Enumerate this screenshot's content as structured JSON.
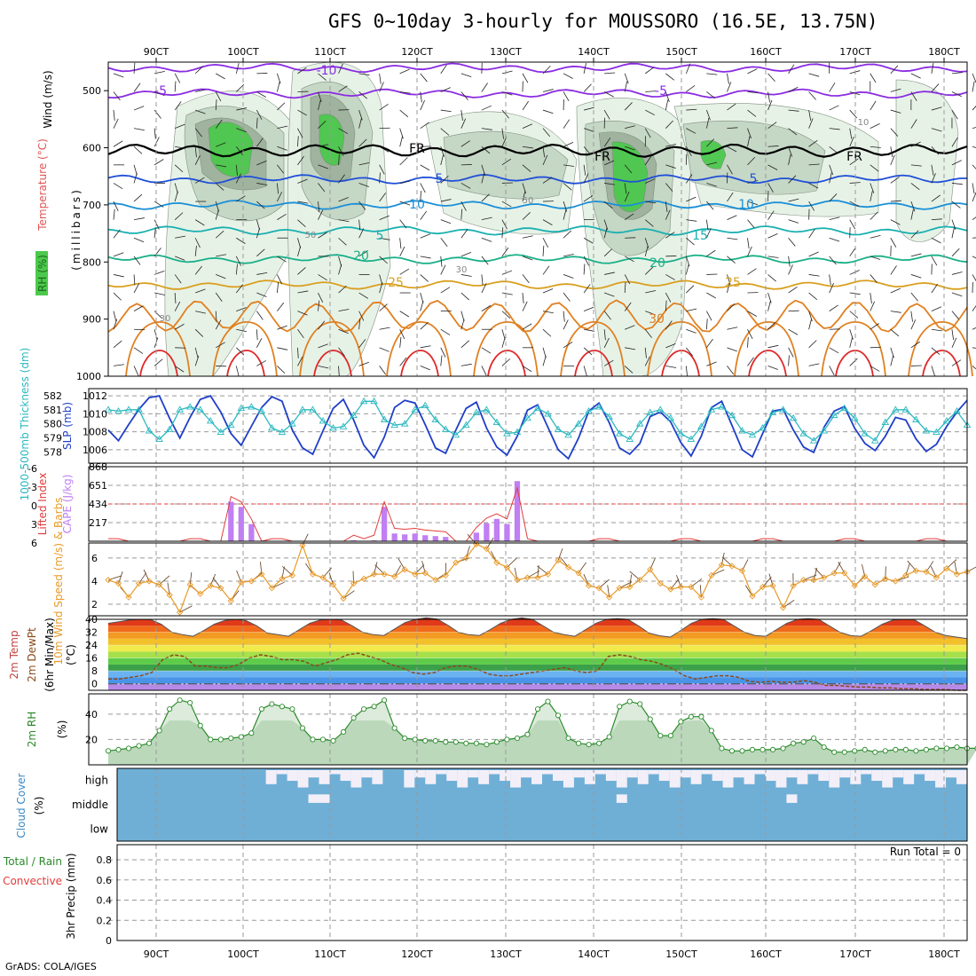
{
  "title": "GFS 0~10day 3-hourly for MOUSSORO (16.5E, 13.75N)",
  "footer": "GrADS: COLA/IGES",
  "run_total_label": "Run Total = 0",
  "colors": {
    "rh_light": "#e6f2e6",
    "rh_mid": "#c4d6c4",
    "rh_dark": "#9db29d",
    "rh_bright": "#4cc94c",
    "slp": "#1f3fc8",
    "thickness": "#2ab8c0",
    "lifted": "#e23c3c",
    "cape": "#c07ff2",
    "wind10": "#e89a2a",
    "barb": "#5c3b1e",
    "rh2m": "#2a8a2a",
    "cloud": "#6fafd6",
    "cloud_clear": "#f3eff8"
  },
  "chart_data": [
    {
      "panel": "upper-air",
      "type": "contour",
      "ylabel": [
        "Wind (m/s)",
        "Temperature (°C)",
        "RH (%)",
        "(millibars)"
      ],
      "x_ticks": [
        "90CT",
        "100CT",
        "110CT",
        "120CT",
        "130CT",
        "140CT",
        "150CT",
        "160CT",
        "170CT",
        "180CT"
      ],
      "y_ticks": [
        500,
        600,
        700,
        800,
        900,
        1000
      ],
      "ylim": [
        450,
        1000
      ],
      "isotherms": [
        {
          "label": "-10",
          "level": 460,
          "color": "#8a2be2"
        },
        {
          "label": "-5",
          "level": 505,
          "color": "#8a2be2"
        },
        {
          "label": "FR",
          "level": 605,
          "color": "#000000"
        },
        {
          "label": "5",
          "level": 655,
          "color": "#1f4fd8"
        },
        {
          "label": "10",
          "level": 700,
          "color": "#1a8fd8"
        },
        {
          "label": "15",
          "level": 745,
          "color": "#19b0b0"
        },
        {
          "label": "20",
          "level": 795,
          "color": "#19b088"
        },
        {
          "label": "25",
          "level": 840,
          "color": "#d9a020"
        },
        {
          "label": "30",
          "level": 895,
          "color": "#e08020"
        }
      ],
      "contour_labels": [
        "-10",
        "-5",
        "-5",
        "FR",
        "FR",
        "FR",
        "5",
        "5",
        "10",
        "10",
        "5",
        "15",
        "20",
        "20",
        "25",
        "25",
        "30",
        "50",
        "50",
        "30",
        "30",
        "10"
      ]
    },
    {
      "panel": "slp-thickness",
      "type": "line",
      "ylabel_left": "1000-500mb Thickness (dm)",
      "ylabel_right": "SLP (mb)",
      "left_ticks": [
        578,
        579,
        580,
        581,
        582
      ],
      "right_ticks": [
        1006,
        1008,
        1010,
        1012
      ],
      "series": [
        {
          "name": "SLP (mb)",
          "values": [
            1008.2,
            1007,
            1008.8,
            1010.5,
            1011.8,
            1012,
            1009.5,
            1007.3,
            1009.6,
            1011.6,
            1012,
            1010.2,
            1007.8,
            1006.5,
            1008.6,
            1010.7,
            1011.9,
            1011.4,
            1008.2,
            1006.2,
            1005.5,
            1008.1,
            1010.6,
            1011.6,
            1009.3,
            1006.5,
            1005.1,
            1007.4,
            1010.7,
            1011.5,
            1011.2,
            1008.8,
            1006.2,
            1005.6,
            1008.2,
            1010.6,
            1011.3,
            1008.4,
            1006.3,
            1005.4,
            1007.5,
            1010.4,
            1011,
            1008.5,
            1006,
            1005,
            1007.3,
            1010.3,
            1011.2,
            1009,
            1006.2,
            1005.5,
            1006.7,
            1009.7,
            1010.2,
            1009.1,
            1006.8,
            1005.3,
            1007.5,
            1010.7,
            1011.4,
            1008.7,
            1006,
            1005.2,
            1007.8,
            1010.3,
            1010.5,
            1008.2,
            1006.3,
            1005.7,
            1008.5,
            1010.3,
            1010.8,
            1008.4,
            1006.7,
            1005.9,
            1007.5,
            1009.6,
            1009.3,
            1007.2,
            1005.8,
            1006.6,
            1008.6,
            1010.2,
            1011.5
          ]
        },
        {
          "name": "1000-500mb Thickness (dm)",
          "values": [
            581,
            580.9,
            581,
            581,
            579.5,
            578.9,
            579.6,
            581,
            581.2,
            581,
            580.2,
            579.4,
            579.9,
            581.1,
            581.2,
            580.9,
            579.7,
            579.4,
            580,
            581,
            581,
            580.2,
            579.7,
            579.8,
            580.6,
            581.6,
            581.6,
            580.3,
            579.9,
            580,
            581,
            581.3,
            580.3,
            579.6,
            579.2,
            579.9,
            580.8,
            581,
            580.1,
            579.3,
            579.4,
            580.4,
            581.1,
            580.7,
            579.6,
            579.2,
            580,
            580.9,
            581.2,
            580.5,
            579.3,
            578.9,
            580,
            580.8,
            581,
            580.4,
            579.3,
            578.9,
            579.8,
            581,
            581.2,
            580.6,
            579.5,
            579.2,
            579.7,
            580.8,
            581,
            580.4,
            579.3,
            578.8,
            579.5,
            580.6,
            581.1,
            580.4,
            579.3,
            578.8,
            580.1,
            581,
            581,
            580.3,
            579.5,
            579.4,
            580.2,
            580.9,
            579.9
          ]
        }
      ]
    },
    {
      "panel": "stability",
      "type": "bar",
      "ylabel_left": "Lifted Index",
      "ylabel_right": "CAPE (J/kg)",
      "left_ticks": [
        "-6",
        "-3",
        "0",
        "3",
        "6"
      ],
      "right_ticks": [
        868,
        651,
        434,
        217
      ],
      "cape": [
        0,
        0,
        0,
        0,
        0,
        0,
        0,
        0,
        0,
        460,
        400,
        200,
        0,
        0,
        0,
        0,
        0,
        0,
        0,
        0,
        0,
        10,
        0,
        10,
        400,
        90,
        80,
        90,
        70,
        60,
        50,
        0,
        0,
        100,
        210,
        260,
        200,
        700,
        0,
        0,
        0,
        0,
        0,
        0,
        0,
        0,
        0,
        0,
        0,
        0,
        0,
        0,
        0,
        0,
        0,
        0,
        0,
        0,
        0,
        0,
        0,
        0,
        0,
        0,
        0,
        0,
        0,
        0,
        0,
        0,
        0,
        0,
        0,
        0,
        0,
        0,
        0,
        0,
        0,
        0
      ],
      "lifted_index": []
    },
    {
      "panel": "wind10m",
      "type": "line",
      "ylabel": "10m Wind Speed (m/s) & Barbs",
      "y_ticks": [
        2,
        4,
        6
      ],
      "ylim": [
        1,
        7.3
      ],
      "series": [
        {
          "name": "10m Wind Speed",
          "values": [
            4.1,
            3.8,
            2.6,
            3.8,
            4,
            3.7,
            2.8,
            1.3,
            3.7,
            2.9,
            3.6,
            3.4,
            2.3,
            3.9,
            4,
            4.6,
            3.4,
            4.2,
            4.5,
            7.1,
            4.6,
            4.3,
            3.7,
            2.5,
            3.8,
            4.2,
            4.6,
            4.6,
            4.4,
            5,
            4.6,
            4.7,
            4.1,
            4.5,
            5.6,
            6,
            7.2,
            6.8,
            5.6,
            5.2,
            4.1,
            4.3,
            4.3,
            4.6,
            5.8,
            5.2,
            4.7,
            3.6,
            3.4,
            2.6,
            3.4,
            3.5,
            4.1,
            5,
            3.8,
            3.3,
            3.5,
            3.5,
            2.6,
            4.5,
            5.4,
            5.3,
            4.9,
            2.7,
            3.5,
            3.6,
            1.7,
            3.6,
            4.1,
            4.1,
            4.3,
            4.7,
            4.7,
            3.6,
            4.4,
            3.7,
            4.2,
            4,
            4.5,
            4.9,
            4.8,
            4.3,
            5.1,
            4.6,
            4.8
          ]
        }
      ]
    },
    {
      "panel": "temp2m",
      "type": "area",
      "ylabel": [
        "2m Temp",
        "2m DewPt",
        "(6hr Min/Max)",
        "(°C)"
      ],
      "y_ticks": [
        0,
        8,
        16,
        24,
        32,
        40
      ],
      "ylim": [
        -4,
        40
      ],
      "series": [
        {
          "name": "2m Temp",
          "values": [
            37.5,
            38.5,
            39.6,
            40,
            39.8,
            37,
            32,
            30.5,
            29.5,
            33,
            37,
            39.3,
            40,
            39.2,
            36,
            31.5,
            30.5,
            29.5,
            33.5,
            37.5,
            39.6,
            40,
            39.6,
            36,
            32,
            30.5,
            30,
            34,
            38,
            40,
            41,
            40.2,
            36.5,
            32,
            30.5,
            30,
            33.5,
            37.5,
            40,
            41,
            40,
            36,
            32,
            30.5,
            29.5,
            33.5,
            37.5,
            40,
            40.5,
            40,
            36,
            31.5,
            29.8,
            29,
            33,
            37.5,
            40,
            40.5,
            40,
            36,
            32,
            30,
            29.5,
            33.5,
            37.5,
            40,
            40.5,
            40,
            36,
            32,
            30,
            29.5,
            33,
            37,
            39.5,
            40,
            39.8,
            36,
            32,
            30,
            29,
            28
          ]
        },
        {
          "name": "2m DewPt",
          "values": [
            3,
            3,
            4,
            5,
            7,
            15,
            18,
            17,
            11,
            11,
            10,
            10,
            12,
            16,
            18,
            17,
            15,
            15,
            14,
            11,
            13,
            15,
            18,
            19,
            17,
            15,
            12,
            10,
            7,
            6,
            7,
            10,
            11,
            11,
            9,
            6,
            5,
            5,
            6,
            7,
            8,
            9,
            10,
            8,
            7,
            8,
            17,
            18,
            17,
            15,
            14,
            12,
            9,
            5,
            3,
            4,
            5,
            5,
            4,
            1.5,
            1,
            1.5,
            1,
            1,
            2,
            1,
            -1,
            -1,
            -1.5,
            -2,
            -2,
            -2.5,
            -2.5,
            -3,
            -3,
            -3.5,
            -3.5,
            -3.5,
            -4,
            -4
          ]
        }
      ]
    },
    {
      "panel": "rh2m",
      "type": "area",
      "ylabel": [
        "2m RH",
        "(%)"
      ],
      "y_ticks": [
        20,
        40
      ],
      "ylim": [
        0,
        56
      ],
      "series": [
        {
          "name": "2m RH",
          "values": [
            11,
            12,
            13,
            15,
            17,
            27,
            44,
            51,
            49,
            31,
            20,
            20,
            21,
            22,
            25,
            44,
            48,
            46,
            44,
            29,
            20,
            20,
            19,
            26,
            37,
            44,
            46,
            51,
            29,
            21,
            20,
            19,
            19,
            18,
            18,
            17,
            17,
            16,
            18,
            20,
            21,
            24,
            44,
            50,
            39,
            21,
            17,
            16,
            17,
            22,
            46,
            50,
            48,
            36,
            23,
            23,
            34,
            38,
            38,
            27,
            13,
            11,
            11,
            12,
            12,
            12,
            13,
            17,
            18,
            21,
            14,
            10,
            10,
            11,
            12,
            10,
            11,
            12,
            12,
            11,
            12,
            13,
            13,
            14,
            13,
            13
          ]
        }
      ]
    },
    {
      "panel": "cloud",
      "type": "heatmap",
      "ylabel": [
        "Cloud Cover",
        "(%)"
      ],
      "rows": [
        "high",
        "middle",
        "low"
      ],
      "high_clear": [
        0,
        0,
        0,
        0,
        0,
        0,
        0,
        0,
        0,
        0,
        0,
        0,
        0,
        0,
        1,
        1,
        1,
        1,
        1,
        1,
        1,
        1,
        1,
        1,
        1,
        0,
        0,
        1,
        1,
        1,
        1,
        1,
        1,
        1,
        1,
        1,
        1,
        1,
        1,
        1,
        1,
        1,
        1,
        1,
        1,
        1,
        1,
        1,
        1,
        1,
        1,
        1,
        1,
        1,
        1,
        1,
        1,
        1,
        1,
        1,
        1,
        1,
        1,
        1,
        1,
        1,
        1,
        1,
        1,
        1,
        1,
        1,
        1,
        1,
        1,
        1,
        1,
        1,
        1,
        1
      ],
      "mid_clear": [
        0,
        0,
        0,
        0,
        0,
        0,
        0,
        0,
        0,
        0,
        0,
        0,
        0,
        0,
        0,
        0,
        0,
        0,
        1,
        1,
        0,
        0,
        0,
        0,
        0,
        0,
        0,
        0,
        0,
        0,
        0,
        0,
        0,
        0,
        0,
        0,
        0,
        0,
        0,
        0,
        0,
        0,
        0,
        0,
        0,
        0,
        0,
        1,
        0,
        0,
        0,
        0,
        0,
        0,
        0,
        0,
        0,
        0,
        0,
        0,
        0,
        0,
        0,
        1,
        0,
        0,
        0,
        0,
        0,
        0,
        0,
        0,
        0,
        0,
        0,
        0,
        0,
        0,
        0,
        0
      ],
      "low_clear": [
        0,
        0,
        0,
        0,
        0,
        0,
        0,
        0,
        0,
        0,
        0,
        0,
        0,
        0,
        0,
        0,
        0,
        0,
        0,
        0,
        0,
        0,
        0,
        0,
        0,
        0,
        0,
        0,
        0,
        0,
        0,
        0,
        0,
        0,
        0,
        0,
        0,
        0,
        0,
        0,
        0,
        0,
        0,
        0,
        0,
        0,
        0,
        0,
        0,
        0,
        0,
        0,
        0,
        0,
        0,
        0,
        0,
        0,
        0,
        0,
        0,
        0,
        0,
        0,
        0,
        0,
        0,
        0,
        0,
        0,
        0,
        0,
        0,
        0,
        0,
        0,
        0,
        0,
        0,
        0
      ]
    },
    {
      "panel": "precip",
      "type": "bar",
      "ylabel": [
        "Total / Rain",
        "Convective",
        "3hr Precip (mm)"
      ],
      "y_ticks": [
        0,
        0.2,
        0.4,
        0.6,
        0.8
      ],
      "ylim": [
        0,
        0.95
      ],
      "values": []
    }
  ]
}
